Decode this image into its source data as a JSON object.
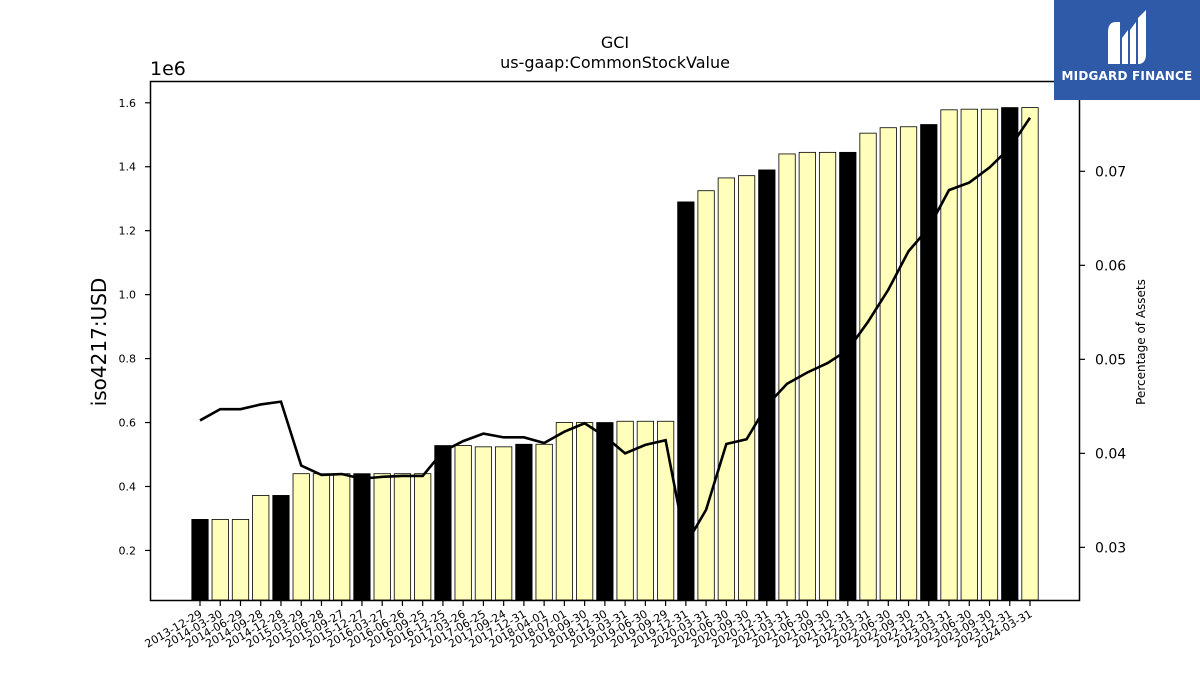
{
  "chart_data": {
    "type": "bar",
    "title": "GCI",
    "subtitle": "us-gaap:CommonStockValue",
    "ylabel": "iso4217:USD",
    "y_offset_label": "1e6",
    "y2label": "Percentage of Assets",
    "ylim": [
      0.045,
      1.665
    ],
    "y2lim": [
      0.0244,
      0.0795
    ],
    "yticks": [
      "0.2",
      "0.4",
      "0.6",
      "0.8",
      "1.0",
      "1.2",
      "1.4",
      "1.6"
    ],
    "y2ticks": [
      "0.03",
      "0.04",
      "0.05",
      "0.06",
      "0.07"
    ],
    "categories": [
      "2013-12-29",
      "2014-03-30",
      "2014-06-29",
      "2014-09-28",
      "2014-12-28",
      "2015-03-29",
      "2015-06-28",
      "2015-09-27",
      "2015-12-27",
      "2016-03-27",
      "2016-06-26",
      "2016-09-25",
      "2016-12-25",
      "2017-03-26",
      "2017-06-25",
      "2017-09-24",
      "2017-12-31",
      "2018-04-01",
      "2018-07-01",
      "2018-09-30",
      "2018-12-30",
      "2019-03-31",
      "2019-06-30",
      "2019-09-29",
      "2019-12-31",
      "2020-03-31",
      "2020-06-30",
      "2020-09-30",
      "2020-12-31",
      "2021-03-31",
      "2021-06-30",
      "2021-09-30",
      "2021-12-31",
      "2022-03-31",
      "2022-06-30",
      "2022-09-30",
      "2022-12-31",
      "2023-03-31",
      "2023-06-30",
      "2023-09-30",
      "2023-12-31",
      "2024-03-31"
    ],
    "values": [
      0.297,
      0.297,
      0.297,
      0.372,
      0.372,
      0.44,
      0.44,
      0.44,
      0.44,
      0.44,
      0.44,
      0.44,
      0.528,
      0.528,
      0.524,
      0.524,
      0.532,
      0.532,
      0.6,
      0.6,
      0.6,
      0.604,
      0.604,
      0.604,
      1.29,
      1.325,
      1.365,
      1.372,
      1.39,
      1.44,
      1.445,
      1.445,
      1.445,
      1.505,
      1.522,
      1.525,
      1.532,
      1.578,
      1.58,
      1.58,
      1.585,
      1.585
    ],
    "highlight": [
      true,
      false,
      false,
      false,
      true,
      false,
      false,
      false,
      true,
      false,
      false,
      false,
      true,
      false,
      false,
      false,
      true,
      false,
      false,
      false,
      true,
      false,
      false,
      false,
      true,
      false,
      false,
      false,
      true,
      false,
      false,
      false,
      true,
      false,
      false,
      false,
      true,
      false,
      false,
      false,
      true,
      false
    ],
    "pct_assets": [
      0.0435,
      0.0447,
      0.0447,
      0.0452,
      0.0455,
      0.0387,
      0.0377,
      0.0378,
      0.0373,
      0.0375,
      0.0376,
      0.0376,
      0.0402,
      0.0413,
      0.0421,
      0.0417,
      0.0417,
      0.0411,
      0.0423,
      0.0432,
      0.0418,
      0.04,
      0.0409,
      0.0414,
      0.0303,
      0.034,
      0.041,
      0.0415,
      0.0451,
      0.0474,
      0.0486,
      0.0496,
      0.051,
      0.054,
      0.0574,
      0.0615,
      0.064,
      0.068,
      0.0688,
      0.0704,
      0.0725,
      0.0757
    ],
    "colors": {
      "bar": "#ffffbb",
      "highlight": "#000000",
      "line": "#000000"
    }
  },
  "logo": {
    "text": "MIDGARD FINANCE"
  }
}
